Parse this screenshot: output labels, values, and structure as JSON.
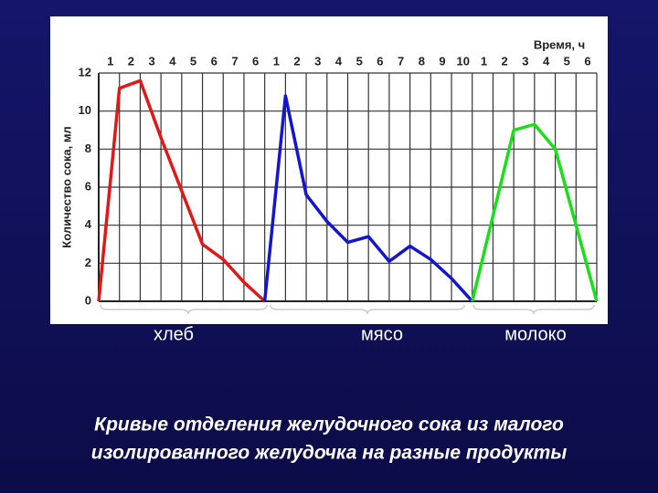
{
  "chart_data": {
    "type": "line",
    "xlabel": "Время, ч",
    "ylabel": "Количество сока, мл",
    "caption": [
      "Кривые отделения желудочного сока из малого",
      "изолированного желудочка на разные продукты"
    ],
    "xlim": [
      0,
      24
    ],
    "ylim": [
      0,
      12
    ],
    "yticks": [
      0,
      2,
      4,
      6,
      8,
      10,
      12
    ],
    "xticks": [
      1,
      2,
      3,
      4,
      5,
      6,
      7,
      {
        "value": 8,
        "label": "6"
      },
      {
        "value": 9,
        "label": "1"
      },
      {
        "value": 10,
        "label": "2"
      },
      {
        "value": 11,
        "label": "3"
      },
      {
        "value": 12,
        "label": "4"
      },
      {
        "value": 13,
        "label": "5"
      },
      {
        "value": 14,
        "label": "6"
      },
      {
        "value": 15,
        "label": "7"
      },
      {
        "value": 16,
        "label": "8"
      },
      {
        "value": 17,
        "label": "9"
      },
      {
        "value": 18,
        "label": "10"
      },
      {
        "value": 19,
        "label": "1"
      },
      {
        "value": 20,
        "label": "2"
      },
      {
        "value": 21,
        "label": "3"
      },
      {
        "value": 22,
        "label": "4"
      },
      {
        "value": 23,
        "label": "5"
      },
      {
        "value": 24,
        "label": "6"
      }
    ],
    "grid": true,
    "series": [
      {
        "name": "хлеб",
        "color": "#e01818",
        "x": [
          0,
          1,
          2,
          3,
          4,
          5,
          6,
          7,
          8
        ],
        "values": [
          0,
          11.2,
          11.6,
          8.6,
          5.8,
          3,
          2.2,
          1,
          0
        ]
      },
      {
        "name": "мясо",
        "color": "#1515d0",
        "x": [
          8,
          9,
          10,
          11,
          12,
          13,
          14,
          15,
          16,
          17,
          18
        ],
        "values": [
          0,
          10.8,
          5.6,
          4.2,
          3.1,
          3.4,
          2.1,
          2.9,
          2.2,
          1.2,
          0
        ]
      },
      {
        "name": "молоко",
        "color": "#18e018",
        "x": [
          18,
          19,
          20,
          21,
          22,
          23,
          24
        ],
        "values": [
          0,
          4.5,
          9,
          9.3,
          8,
          4,
          0
        ]
      }
    ]
  }
}
